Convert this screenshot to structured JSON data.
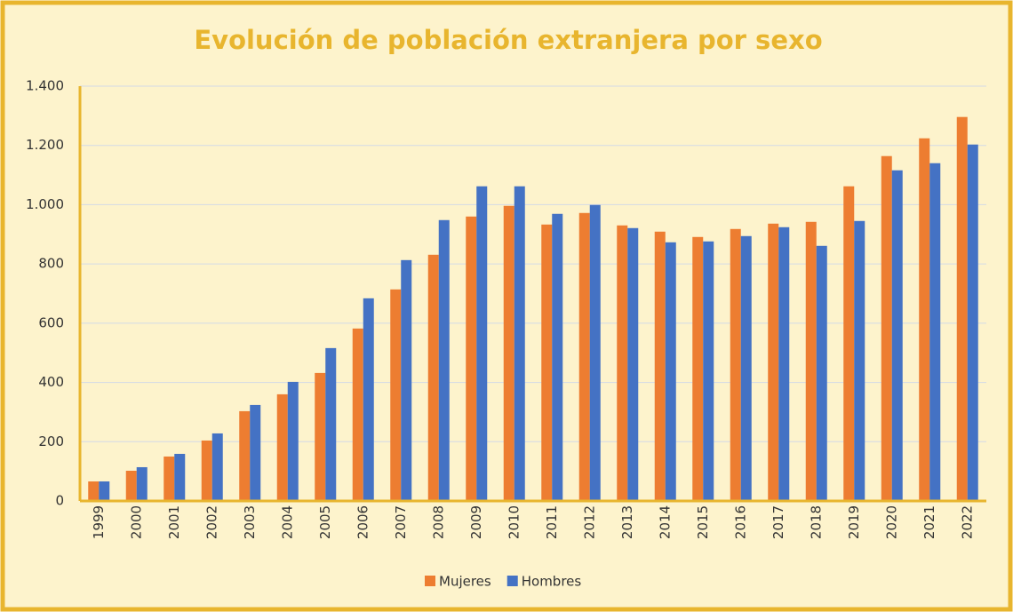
{
  "chart_data": {
    "type": "bar",
    "title": "Evolución de población extranjera por sexo",
    "categories": [
      "1999",
      "2000",
      "2001",
      "2002",
      "2003",
      "2004",
      "2005",
      "2006",
      "2007",
      "2008",
      "2009",
      "2010",
      "2011",
      "2012",
      "2013",
      "2014",
      "2015",
      "2016",
      "2017",
      "2018",
      "2019",
      "2020",
      "2021",
      "2022"
    ],
    "series": [
      {
        "name": "Mujeres",
        "color": "#ed7d31",
        "values": [
          66,
          102,
          150,
          204,
          303,
          360,
          432,
          582,
          714,
          831,
          960,
          996,
          933,
          972,
          930,
          909,
          891,
          918,
          936,
          942,
          1062,
          1164,
          1224,
          1296
        ]
      },
      {
        "name": "Hombres",
        "color": "#4472c4",
        "values": [
          66,
          114,
          159,
          228,
          324,
          402,
          516,
          684,
          813,
          948,
          1062,
          1062,
          969,
          999,
          921,
          873,
          876,
          894,
          924,
          861,
          945,
          1116,
          1140,
          1203
        ]
      }
    ],
    "ylim": [
      0,
      1400
    ],
    "yticks": [
      0,
      200,
      400,
      600,
      800,
      {
        "value": 1000,
        "label": "1.000"
      },
      {
        "value": 1200,
        "label": "1.200"
      },
      {
        "value": 1400,
        "label": "1.400"
      }
    ],
    "grid": true,
    "legend": "bottom"
  }
}
